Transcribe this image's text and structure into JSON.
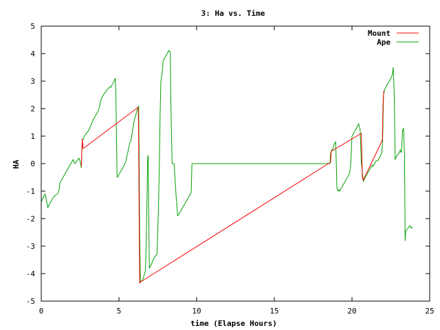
{
  "chart_data": {
    "type": "line",
    "title": "3: Ha vs. Time",
    "xlabel": "time (Elapse Hours)",
    "ylabel": "HA",
    "xlim": [
      0,
      25
    ],
    "ylim": [
      -5,
      5
    ],
    "xticks": [
      0,
      5,
      10,
      15,
      20,
      25
    ],
    "yticks": [
      -5,
      -4,
      -3,
      -2,
      -1,
      0,
      1,
      2,
      3,
      4,
      5
    ],
    "grid": false,
    "legend_position": "top-right",
    "series": [
      {
        "name": "Mount",
        "color": "#ff0000",
        "points": [
          [
            2.58,
            -0.1
          ],
          [
            2.64,
            0.9
          ],
          [
            2.7,
            0.55
          ],
          [
            6.24,
            2.05
          ],
          [
            6.27,
            1.0
          ],
          [
            6.3,
            -2.0
          ],
          [
            6.33,
            -4.35
          ],
          [
            6.4,
            -4.3
          ],
          [
            18.62,
            0.05
          ],
          [
            18.67,
            0.45
          ],
          [
            20.6,
            1.1
          ],
          [
            20.67,
            -0.5
          ],
          [
            20.72,
            -0.6
          ],
          [
            21.95,
            0.85
          ],
          [
            22.0,
            2.2
          ],
          [
            22.05,
            2.65
          ]
        ]
      },
      {
        "name": "Ape",
        "color": "#00a000",
        "points": [
          [
            0.0,
            -1.4
          ],
          [
            0.15,
            -1.2
          ],
          [
            0.25,
            -1.1
          ],
          [
            0.35,
            -1.4
          ],
          [
            0.42,
            -1.6
          ],
          [
            0.55,
            -1.45
          ],
          [
            0.75,
            -1.25
          ],
          [
            0.9,
            -1.15
          ],
          [
            1.05,
            -1.1
          ],
          [
            1.15,
            -0.95
          ],
          [
            1.2,
            -0.7
          ],
          [
            1.35,
            -0.55
          ],
          [
            1.5,
            -0.4
          ],
          [
            1.65,
            -0.25
          ],
          [
            1.8,
            -0.1
          ],
          [
            1.95,
            0.05
          ],
          [
            2.05,
            0.15
          ],
          [
            2.15,
            0.0
          ],
          [
            2.3,
            0.1
          ],
          [
            2.42,
            0.2
          ],
          [
            2.52,
            0.05
          ],
          [
            2.58,
            -0.15
          ],
          [
            2.64,
            0.85
          ],
          [
            2.72,
            0.9
          ],
          [
            2.78,
            1.0
          ],
          [
            2.9,
            1.1
          ],
          [
            3.05,
            1.2
          ],
          [
            3.2,
            1.4
          ],
          [
            3.35,
            1.6
          ],
          [
            3.5,
            1.75
          ],
          [
            3.65,
            1.9
          ],
          [
            3.75,
            2.05
          ],
          [
            3.82,
            2.3
          ],
          [
            3.95,
            2.45
          ],
          [
            4.05,
            2.55
          ],
          [
            4.15,
            2.6
          ],
          [
            4.25,
            2.7
          ],
          [
            4.35,
            2.75
          ],
          [
            4.42,
            2.8
          ],
          [
            4.5,
            2.78
          ],
          [
            4.58,
            2.9
          ],
          [
            4.65,
            2.95
          ],
          [
            4.72,
            3.05
          ],
          [
            4.76,
            3.1
          ],
          [
            4.8,
            2.6
          ],
          [
            4.88,
            -0.5
          ],
          [
            5.0,
            -0.4
          ],
          [
            5.1,
            -0.3
          ],
          [
            5.25,
            -0.15
          ],
          [
            5.35,
            -0.05
          ],
          [
            5.45,
            0.1
          ],
          [
            5.5,
            0.25
          ],
          [
            5.55,
            0.35
          ],
          [
            5.62,
            0.55
          ],
          [
            5.7,
            0.75
          ],
          [
            5.78,
            0.85
          ],
          [
            5.85,
            1.1
          ],
          [
            5.92,
            1.35
          ],
          [
            5.98,
            1.55
          ],
          [
            6.05,
            1.7
          ],
          [
            6.12,
            1.85
          ],
          [
            6.2,
            2.0
          ],
          [
            6.27,
            2.1
          ],
          [
            6.3,
            0.4
          ],
          [
            6.33,
            -2.5
          ],
          [
            6.38,
            -4.3
          ],
          [
            6.5,
            -4.25
          ],
          [
            6.6,
            -4.1
          ],
          [
            6.7,
            -3.9
          ],
          [
            6.75,
            -3.0
          ],
          [
            6.8,
            -1.5
          ],
          [
            6.85,
            0.2
          ],
          [
            6.88,
            0.3
          ],
          [
            6.92,
            -2.0
          ],
          [
            6.96,
            -3.8
          ],
          [
            7.1,
            -3.65
          ],
          [
            7.2,
            -3.5
          ],
          [
            7.35,
            -3.35
          ],
          [
            7.45,
            -3.3
          ],
          [
            7.55,
            -1.5
          ],
          [
            7.6,
            0.0
          ],
          [
            7.65,
            1.8
          ],
          [
            7.7,
            3.0
          ],
          [
            7.78,
            3.3
          ],
          [
            7.85,
            3.75
          ],
          [
            7.95,
            3.85
          ],
          [
            8.05,
            3.95
          ],
          [
            8.15,
            4.05
          ],
          [
            8.22,
            4.12
          ],
          [
            8.3,
            4.05
          ],
          [
            8.35,
            2.0
          ],
          [
            8.42,
            0.0
          ],
          [
            8.55,
            0.0
          ],
          [
            8.68,
            -1.2
          ],
          [
            8.78,
            -1.9
          ],
          [
            8.9,
            -1.8
          ],
          [
            9.0,
            -1.7
          ],
          [
            9.15,
            -1.55
          ],
          [
            9.3,
            -1.4
          ],
          [
            9.45,
            -1.25
          ],
          [
            9.55,
            -1.15
          ],
          [
            9.65,
            -1.05
          ],
          [
            9.7,
            0.0
          ],
          [
            18.58,
            0.0
          ],
          [
            18.62,
            0.35
          ],
          [
            18.68,
            0.5
          ],
          [
            18.75,
            0.5
          ],
          [
            18.85,
            0.7
          ],
          [
            18.95,
            0.8
          ],
          [
            19.03,
            -0.9
          ],
          [
            19.1,
            -1.0
          ],
          [
            19.15,
            -0.95
          ],
          [
            19.2,
            -1.0
          ],
          [
            19.3,
            -0.9
          ],
          [
            19.45,
            -0.75
          ],
          [
            19.6,
            -0.6
          ],
          [
            19.75,
            -0.45
          ],
          [
            19.85,
            -0.35
          ],
          [
            19.92,
            0.0
          ],
          [
            20.0,
            1.0
          ],
          [
            20.15,
            1.15
          ],
          [
            20.3,
            1.3
          ],
          [
            20.42,
            1.45
          ],
          [
            20.52,
            1.25
          ],
          [
            20.6,
            0.0
          ],
          [
            20.67,
            -0.3
          ],
          [
            20.72,
            -0.65
          ],
          [
            20.85,
            -0.5
          ],
          [
            21.0,
            -0.35
          ],
          [
            21.1,
            -0.25
          ],
          [
            21.2,
            -0.15
          ],
          [
            21.3,
            -0.05
          ],
          [
            21.35,
            -0.1
          ],
          [
            21.45,
            0.0
          ],
          [
            21.55,
            0.1
          ],
          [
            21.65,
            0.1
          ],
          [
            21.75,
            0.2
          ],
          [
            21.85,
            0.3
          ],
          [
            21.92,
            0.4
          ],
          [
            21.97,
            0.8
          ],
          [
            22.03,
            2.5
          ],
          [
            22.1,
            2.7
          ],
          [
            22.2,
            2.8
          ],
          [
            22.35,
            2.95
          ],
          [
            22.5,
            3.1
          ],
          [
            22.6,
            3.25
          ],
          [
            22.65,
            3.5
          ],
          [
            22.72,
            2.5
          ],
          [
            22.78,
            0.15
          ],
          [
            22.9,
            0.3
          ],
          [
            23.05,
            0.4
          ],
          [
            23.1,
            0.5
          ],
          [
            23.18,
            0.4
          ],
          [
            23.25,
            1.2
          ],
          [
            23.32,
            1.28
          ],
          [
            23.38,
            0.3
          ],
          [
            23.42,
            -2.8
          ],
          [
            23.46,
            -2.45
          ],
          [
            23.6,
            -2.35
          ],
          [
            23.72,
            -2.25
          ],
          [
            23.82,
            -2.35
          ],
          [
            23.9,
            -2.3
          ]
        ]
      }
    ]
  }
}
